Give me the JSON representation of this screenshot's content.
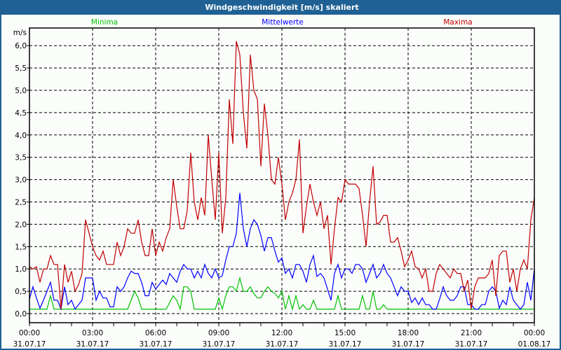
{
  "window": {
    "title": "Windgeschwindigkeit [m/s] skaliert"
  },
  "chart_data": {
    "type": "line",
    "title": "Windgeschwindigkeit [m/s] skaliert",
    "ylabel": "m/s",
    "ylim": [
      -0.2,
      6.4
    ],
    "yticks": [
      0.0,
      0.5,
      1.0,
      1.5,
      2.0,
      2.5,
      3.0,
      3.5,
      4.0,
      4.5,
      5.0,
      5.5,
      6.0
    ],
    "ytick_labels": [
      "0,0",
      "0,5",
      "1,0",
      "1,5",
      "2,0",
      "2,5",
      "3,0",
      "3,5",
      "4,0",
      "4,5",
      "5,0",
      "5,5",
      "6,0"
    ],
    "x_unit": "hours since 31.07.17 00:00",
    "x_step_minutes": 10,
    "xlim": [
      0,
      24
    ],
    "xticks": [
      {
        "hours": 0,
        "time": "00:00",
        "date": "31.07.17"
      },
      {
        "hours": 3,
        "time": "03:00",
        "date": "31.07.17"
      },
      {
        "hours": 6,
        "time": "06:00",
        "date": "31.07.17"
      },
      {
        "hours": 9,
        "time": "09:00",
        "date": "31.07.17"
      },
      {
        "hours": 12,
        "time": "12:00",
        "date": "31.07.17"
      },
      {
        "hours": 15,
        "time": "15:00",
        "date": "31.07.17"
      },
      {
        "hours": 18,
        "time": "18:00",
        "date": "31.07.17"
      },
      {
        "hours": 21,
        "time": "21:00",
        "date": "31.07.17"
      },
      {
        "hours": 24,
        "time": "00:00",
        "date": "01.08.17"
      }
    ],
    "grid": true,
    "legend_placement": "top",
    "series": [
      {
        "name": "Minima",
        "color": "#00c000",
        "values": [
          0.1,
          0.1,
          0.1,
          0.1,
          0.1,
          0.1,
          0.4,
          0.1,
          0.1,
          0.1,
          0.1,
          0.1,
          0.1,
          0.1,
          0.1,
          0.1,
          0.1,
          0.1,
          0.1,
          0.1,
          0.1,
          0.1,
          0.1,
          0.1,
          0.1,
          0.1,
          0.1,
          0.1,
          0.1,
          0.3,
          0.5,
          0.35,
          0.1,
          0.1,
          0.1,
          0.1,
          0.1,
          0.1,
          0.1,
          0.1,
          0.25,
          0.4,
          0.3,
          0.1,
          0.6,
          0.6,
          0.5,
          0.1,
          0.1,
          0.1,
          0.1,
          0.1,
          0.1,
          0.1,
          0.35,
          0.1,
          0.4,
          0.6,
          0.6,
          0.5,
          0.8,
          0.5,
          0.5,
          0.6,
          0.45,
          0.35,
          0.35,
          0.5,
          0.6,
          0.5,
          0.45,
          0.35,
          0.5,
          0.1,
          0.4,
          0.1,
          0.4,
          0.1,
          0.2,
          0.1,
          0.1,
          0.3,
          0.1,
          0.1,
          0.1,
          0.1,
          0.1,
          0.1,
          0.4,
          0.1,
          0.1,
          0.1,
          0.1,
          0.1,
          0.1,
          0.4,
          0.1,
          0.1,
          0.5,
          0.1,
          0.1,
          0.2,
          0.1,
          0.1,
          0.1,
          0.1,
          0.1,
          0.1,
          0.1,
          0.1,
          0.1,
          0.1,
          0.1,
          0.1,
          0.1,
          0.1,
          0.1,
          0.1,
          0.1,
          0.1,
          0.1,
          0.1,
          0.1,
          0.1,
          0.1,
          0.1,
          0.1,
          0.1,
          0.1,
          0.1,
          0.1,
          0.1,
          0.1,
          0.1,
          0.1,
          0.1,
          0.1,
          0.1,
          0.1,
          0.1,
          0.1,
          0.1,
          0.1,
          0.1,
          0.1
        ]
      },
      {
        "name": "Mittelwerte",
        "color": "#0000ff",
        "values": [
          0.33,
          0.6,
          0.35,
          0.12,
          0.3,
          0.5,
          0.7,
          0.3,
          0.3,
          0.1,
          0.6,
          0.2,
          0.3,
          0.1,
          0.2,
          0.3,
          0.8,
          0.8,
          0.8,
          0.3,
          0.5,
          0.35,
          0.35,
          0.15,
          0.15,
          0.6,
          0.5,
          0.6,
          0.8,
          0.95,
          0.9,
          0.9,
          0.7,
          0.4,
          0.4,
          0.7,
          0.55,
          0.65,
          0.75,
          0.65,
          0.9,
          0.8,
          0.7,
          0.95,
          1.1,
          1.0,
          1.0,
          0.8,
          0.95,
          0.8,
          1.1,
          0.9,
          0.8,
          1.0,
          0.8,
          0.85,
          1.2,
          1.5,
          1.5,
          1.8,
          2.7,
          1.9,
          1.5,
          1.9,
          2.1,
          2.0,
          1.75,
          1.4,
          1.7,
          1.7,
          1.4,
          1.15,
          1.25,
          0.9,
          1.0,
          0.8,
          1.1,
          1.1,
          0.95,
          0.7,
          1.1,
          1.3,
          0.83,
          0.9,
          0.8,
          0.55,
          0.3,
          0.9,
          1.1,
          0.8,
          1.0,
          1.0,
          0.9,
          1.1,
          1.1,
          1.0,
          0.7,
          0.9,
          1.1,
          0.8,
          0.9,
          1.1,
          0.9,
          0.8,
          0.6,
          0.4,
          0.6,
          0.5,
          0.5,
          0.25,
          0.35,
          0.2,
          0.35,
          0.2,
          0.2,
          0.1,
          0.1,
          0.33,
          0.6,
          0.4,
          0.3,
          0.3,
          0.4,
          0.6,
          0.6,
          0.2,
          0.2,
          0.1,
          0.1,
          0.2,
          0.2,
          0.5,
          0.6,
          0.5,
          0.12,
          0.3,
          0.2,
          0.6,
          0.3,
          0.2,
          0.1,
          0.2,
          0.7,
          0.3,
          1.0
        ]
      },
      {
        "name": "Maxima",
        "color": "#c00000",
        "values": [
          1.05,
          1.0,
          1.05,
          0.7,
          1.0,
          1.0,
          1.3,
          1.1,
          1.1,
          0.1,
          1.1,
          0.7,
          0.95,
          0.5,
          0.65,
          0.9,
          2.1,
          1.8,
          1.5,
          1.3,
          1.2,
          1.4,
          1.1,
          1.1,
          1.1,
          1.6,
          1.3,
          1.5,
          1.9,
          1.8,
          1.8,
          2.1,
          1.6,
          1.3,
          1.3,
          1.9,
          1.3,
          1.6,
          1.4,
          1.7,
          1.9,
          3.0,
          2.4,
          1.9,
          1.9,
          2.3,
          3.6,
          2.5,
          2.1,
          2.6,
          2.2,
          4.0,
          3.0,
          2.1,
          3.6,
          1.8,
          2.6,
          4.8,
          3.8,
          6.1,
          5.8,
          4.5,
          3.7,
          5.8,
          5.0,
          4.8,
          3.3,
          4.7,
          4.0,
          3.0,
          2.9,
          3.5,
          2.9,
          2.1,
          2.5,
          2.7,
          3.0,
          3.9,
          1.8,
          2.4,
          2.9,
          2.5,
          2.2,
          2.5,
          1.9,
          2.2,
          1.1,
          1.9,
          2.6,
          2.5,
          3.0,
          2.9,
          2.9,
          2.9,
          2.8,
          2.2,
          1.5,
          2.5,
          3.3,
          2.0,
          2.05,
          2.2,
          2.2,
          1.6,
          1.6,
          1.7,
          1.4,
          1.05,
          1.2,
          1.4,
          1.05,
          1.0,
          0.8,
          1.0,
          0.5,
          0.5,
          0.9,
          1.1,
          1.0,
          0.9,
          0.8,
          1.0,
          0.9,
          0.9,
          0.5,
          0.75,
          0.1,
          0.6,
          0.8,
          0.8,
          0.8,
          0.9,
          1.2,
          0.4,
          1.3,
          1.4,
          1.4,
          0.7,
          1.0,
          0.5,
          1.0,
          1.2,
          1.0,
          2.1,
          2.6
        ]
      }
    ]
  }
}
